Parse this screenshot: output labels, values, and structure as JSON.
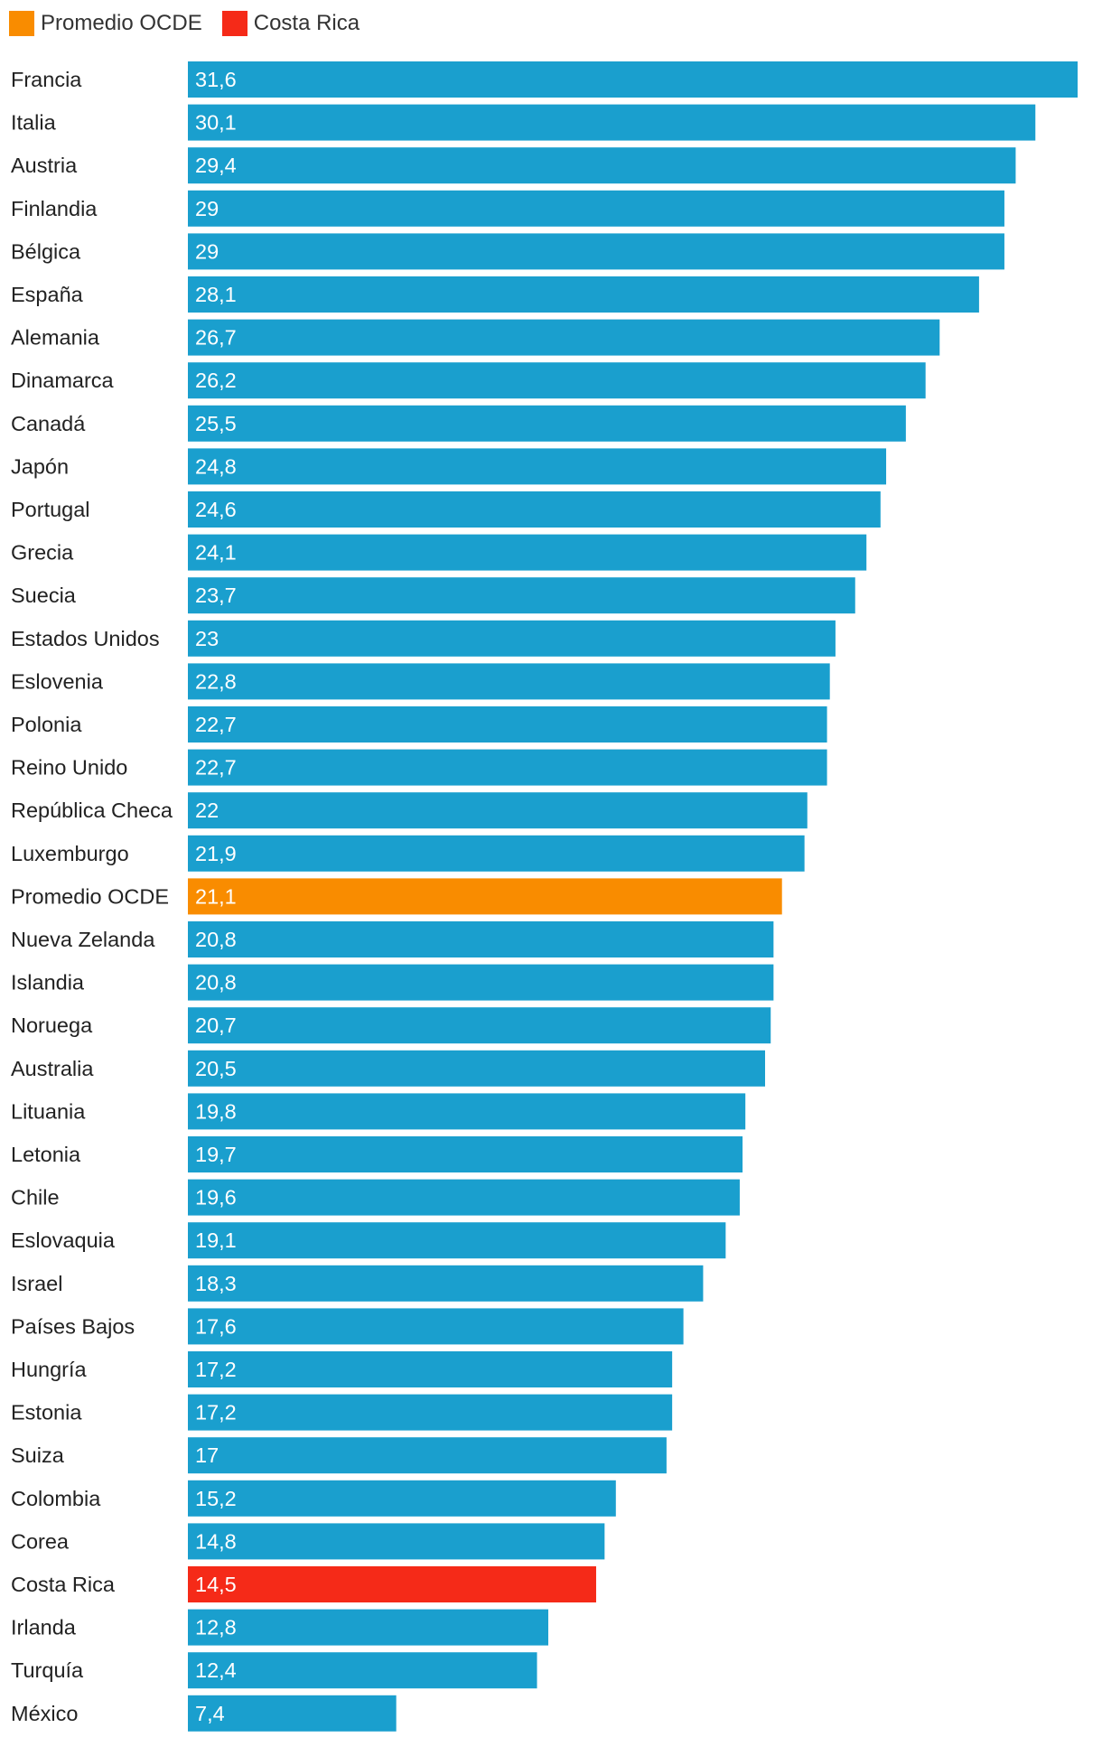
{
  "chart_data": {
    "type": "bar",
    "orientation": "horizontal",
    "legend": [
      {
        "name": "Promedio OCDE",
        "color": "#f98c00"
      },
      {
        "name": "Costa Rica",
        "color": "#f52a18"
      }
    ],
    "default_color": "#1a9fce",
    "categories": [
      "Francia",
      "Italia",
      "Austria",
      "Finlandia",
      "Bélgica",
      "España",
      "Alemania",
      "Dinamarca",
      "Canadá",
      "Japón",
      "Portugal",
      "Grecia",
      "Suecia",
      "Estados Unidos",
      "Eslovenia",
      "Polonia",
      "Reino Unido",
      "República Checa",
      "Luxemburgo",
      "Promedio OCDE",
      "Nueva Zelanda",
      "Islandia",
      "Noruega",
      "Australia",
      "Lituania",
      "Letonia",
      "Chile",
      "Eslovaquia",
      "Israel",
      "Países Bajos",
      "Hungría",
      "Estonia",
      "Suiza",
      "Colombia",
      "Corea",
      "Costa Rica",
      "Irlanda",
      "Turquía",
      "México"
    ],
    "values": [
      31.6,
      30.1,
      29.4,
      29,
      29,
      28.1,
      26.7,
      26.2,
      25.5,
      24.8,
      24.6,
      24.1,
      23.7,
      23,
      22.8,
      22.7,
      22.7,
      22,
      21.9,
      21.1,
      20.8,
      20.8,
      20.7,
      20.5,
      19.8,
      19.7,
      19.6,
      19.1,
      18.3,
      17.6,
      17.2,
      17.2,
      17,
      15.2,
      14.8,
      14.5,
      12.8,
      12.4,
      7.4
    ],
    "value_labels": [
      "31,6",
      "30,1",
      "29,4",
      "29",
      "29",
      "28,1",
      "26,7",
      "26,2",
      "25,5",
      "24,8",
      "24,6",
      "24,1",
      "23,7",
      "23",
      "22,8",
      "22,7",
      "22,7",
      "22",
      "21,9",
      "21,1",
      "20,8",
      "20,8",
      "20,7",
      "20,5",
      "19,8",
      "19,7",
      "19,6",
      "19,1",
      "18,3",
      "17,6",
      "17,2",
      "17,2",
      "17",
      "15,2",
      "14,8",
      "14,5",
      "12,8",
      "12,4",
      "7,4"
    ],
    "highlight": {
      "Promedio OCDE": "#f98c00",
      "Costa Rica": "#f52a18"
    },
    "xlim": [
      0,
      31.6
    ],
    "title": "",
    "xlabel": "",
    "ylabel": ""
  }
}
